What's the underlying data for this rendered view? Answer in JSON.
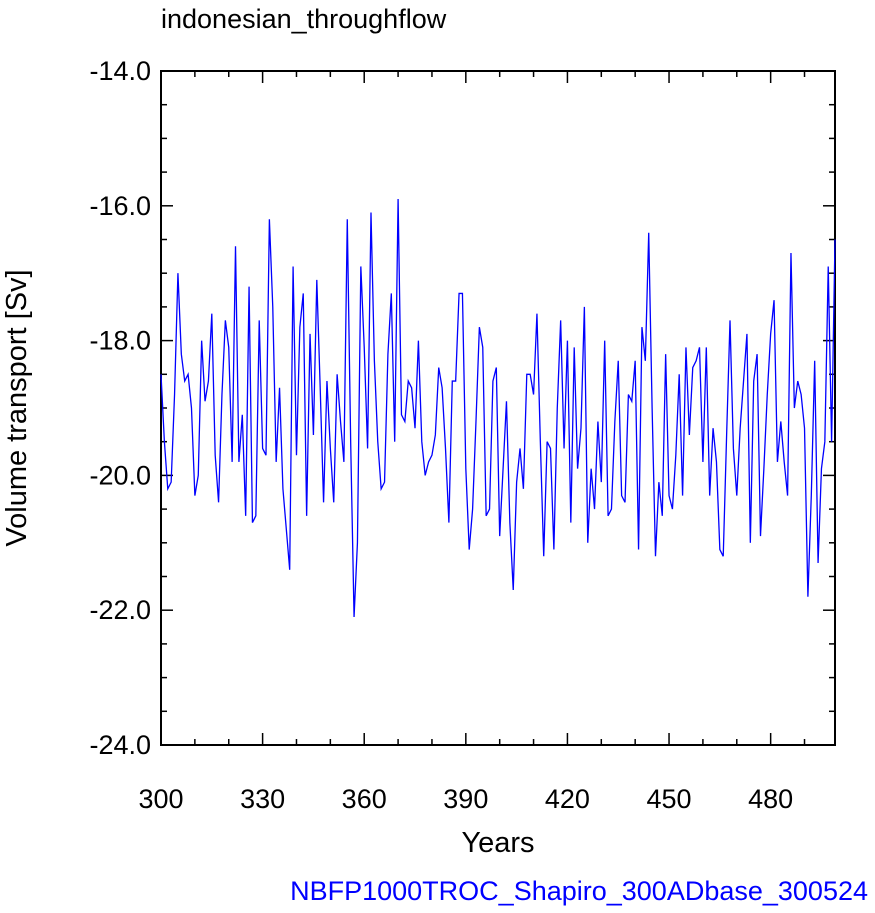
{
  "chart_data": {
    "type": "line",
    "title": "indonesian_throughflow",
    "xlabel": "Years",
    "ylabel": "Volume transport [Sv]",
    "footer": "NBFP1000TROC_Shapiro_300ADbase_300524",
    "xlim": [
      300,
      499
    ],
    "ylim": [
      -24.0,
      -14.0
    ],
    "x_ticks": [
      "300",
      "330",
      "360",
      "390",
      "420",
      "450",
      "480"
    ],
    "y_ticks": [
      "-14.0",
      "-16.0",
      "-18.0",
      "-20.0",
      "-22.0",
      "-24.0"
    ],
    "grid": false,
    "line_color": "#0000ff",
    "axis_color": "#000000",
    "footer_color": "#0000ff",
    "series": [
      {
        "x_start": 300,
        "x_step": 1,
        "values": [
          -18.5,
          -19.5,
          -20.2,
          -20.1,
          -18.8,
          -17.0,
          -18.2,
          -18.6,
          -18.5,
          -19.0,
          -20.3,
          -20.0,
          -18.0,
          -18.9,
          -18.6,
          -17.6,
          -19.7,
          -20.4,
          -18.8,
          -17.7,
          -18.1,
          -19.8,
          -16.6,
          -19.8,
          -19.1,
          -20.6,
          -17.2,
          -20.7,
          -20.6,
          -17.7,
          -19.6,
          -19.7,
          -16.2,
          -17.5,
          -19.8,
          -18.7,
          -20.2,
          -20.8,
          -21.4,
          -16.9,
          -19.7,
          -17.8,
          -17.3,
          -20.6,
          -17.9,
          -19.4,
          -17.1,
          -18.7,
          -20.4,
          -18.6,
          -19.6,
          -20.4,
          -18.5,
          -19.2,
          -19.8,
          -16.2,
          -19.5,
          -22.1,
          -21.0,
          -16.9,
          -18.1,
          -19.6,
          -16.1,
          -18.3,
          -19.5,
          -20.2,
          -20.1,
          -18.2,
          -17.3,
          -19.5,
          -15.9,
          -19.1,
          -19.2,
          -18.6,
          -18.7,
          -19.3,
          -18.0,
          -19.5,
          -20.0,
          -19.8,
          -19.7,
          -19.4,
          -18.4,
          -18.7,
          -19.6,
          -20.7,
          -18.6,
          -18.6,
          -17.3,
          -17.3,
          -19.9,
          -21.1,
          -20.5,
          -19.2,
          -17.8,
          -18.1,
          -20.6,
          -20.5,
          -18.6,
          -18.4,
          -20.9,
          -19.9,
          -18.9,
          -20.7,
          -21.7,
          -20.1,
          -19.6,
          -20.2,
          -18.5,
          -18.5,
          -18.8,
          -17.6,
          -19.5,
          -21.2,
          -19.5,
          -19.6,
          -21.1,
          -19.0,
          -17.7,
          -19.6,
          -18.0,
          -20.7,
          -18.1,
          -19.9,
          -19.3,
          -17.5,
          -21.0,
          -19.9,
          -20.5,
          -19.2,
          -20.1,
          -18.0,
          -20.6,
          -20.5,
          -19.2,
          -18.3,
          -20.3,
          -20.4,
          -18.8,
          -18.9,
          -18.3,
          -21.1,
          -17.8,
          -18.3,
          -16.4,
          -19.0,
          -21.2,
          -20.1,
          -20.6,
          -18.2,
          -20.3,
          -20.5,
          -19.7,
          -18.5,
          -20.3,
          -18.1,
          -19.4,
          -18.4,
          -18.3,
          -18.1,
          -19.8,
          -18.1,
          -20.3,
          -19.3,
          -19.8,
          -21.1,
          -21.2,
          -19.4,
          -17.7,
          -19.6,
          -20.3,
          -19.3,
          -18.6,
          -17.9,
          -21.0,
          -18.6,
          -18.2,
          -20.9,
          -19.9,
          -18.8,
          -17.9,
          -17.4,
          -19.8,
          -19.2,
          -19.8,
          -20.3,
          -16.7,
          -19.0,
          -18.6,
          -18.8,
          -19.3,
          -21.8,
          -20.3,
          -18.3,
          -21.3,
          -19.9,
          -19.5,
          -16.9,
          -19.5,
          -16.5
        ]
      }
    ]
  }
}
